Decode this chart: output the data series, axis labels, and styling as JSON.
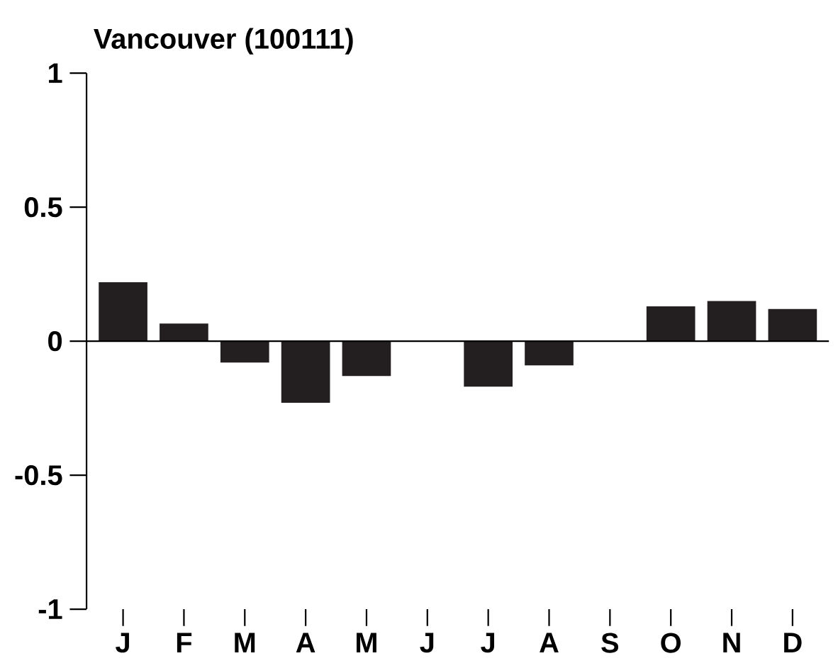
{
  "chart_data": {
    "type": "bar",
    "title": "Vancouver (100111)",
    "categories": [
      "J",
      "F",
      "M",
      "A",
      "M",
      "J",
      "J",
      "A",
      "S",
      "O",
      "N",
      "D"
    ],
    "values": [
      0.22,
      0.066,
      -0.08,
      -0.23,
      -0.13,
      0,
      -0.17,
      -0.09,
      0,
      0.13,
      0.15,
      0.12
    ],
    "color": "#231f20",
    "ylim": [
      -1,
      1
    ],
    "yticks": [
      -1,
      -0.5,
      0,
      0.5,
      1
    ],
    "ref_lines": [
      {
        "axis": "y",
        "value": 0
      }
    ]
  }
}
